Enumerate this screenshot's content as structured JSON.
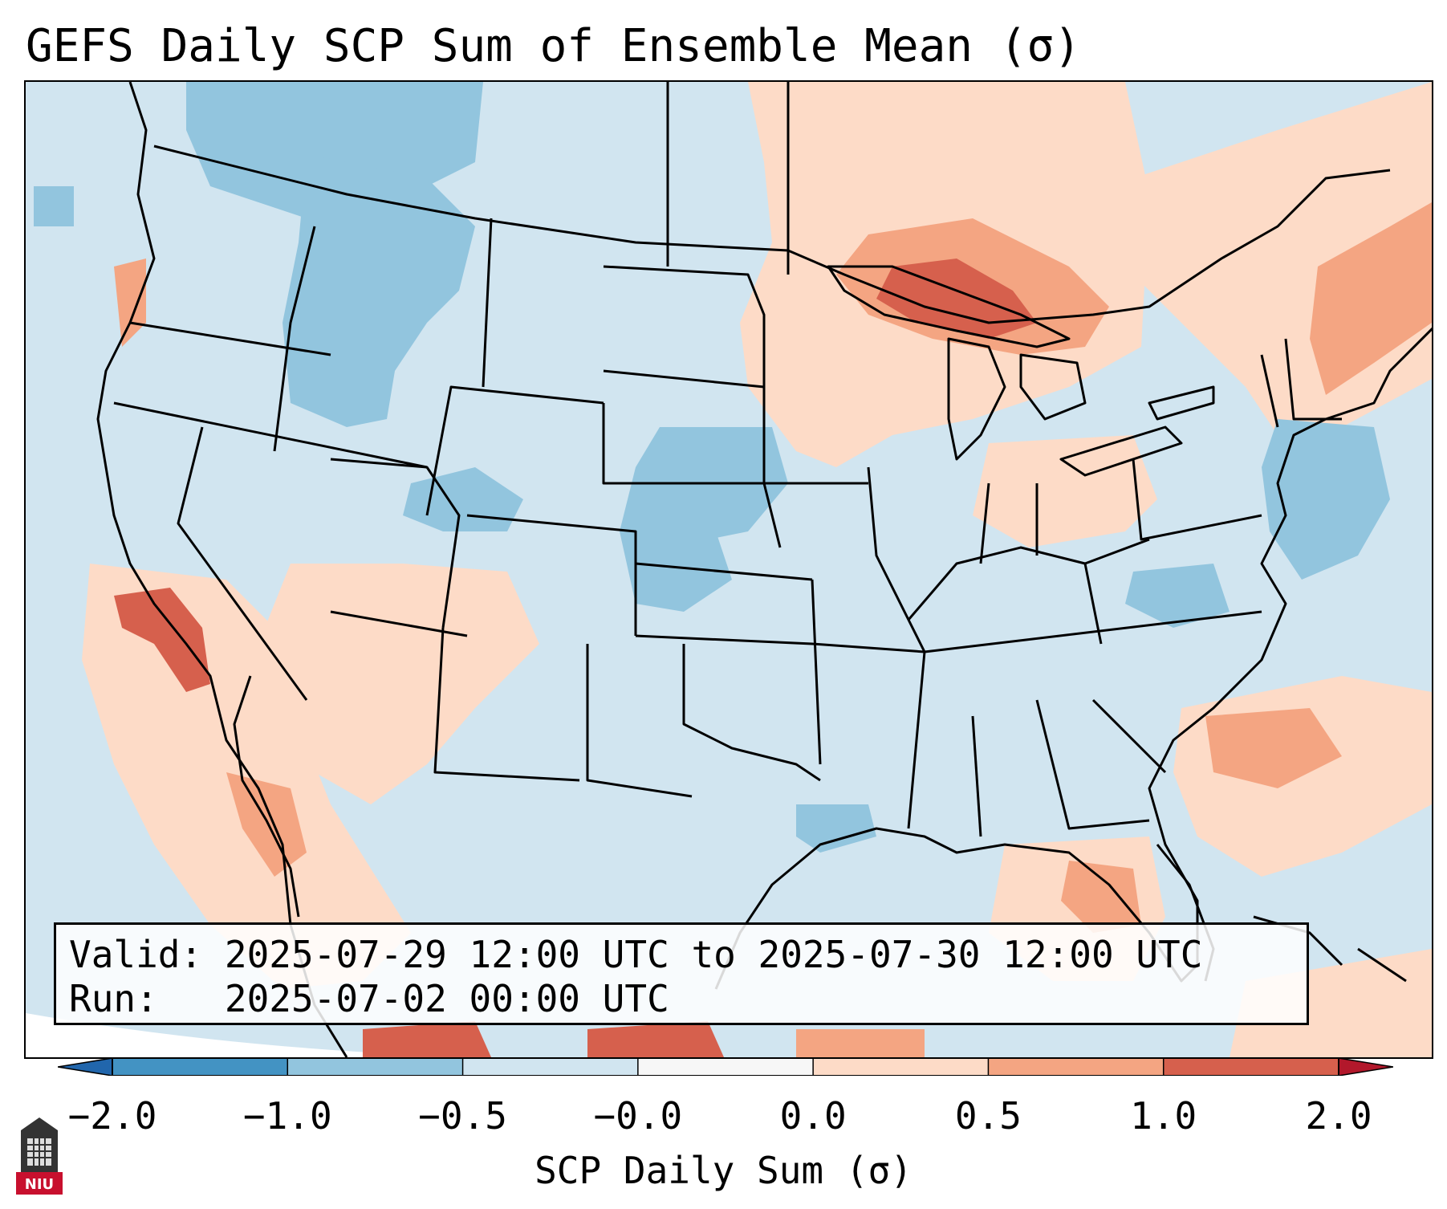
{
  "title": "GEFS Daily SCP Sum of Ensemble Mean (σ)",
  "info": {
    "valid_label": "Valid:",
    "valid_value": "2025-07-29 12:00 UTC to 2025-07-30 12:00 UTC",
    "run_label": "Run:",
    "run_value": "2025-07-02 00:00 UTC"
  },
  "colorbar": {
    "label": "SCP Daily Sum (σ)",
    "ticks": [
      "−2.0",
      "−1.0",
      "−0.5",
      "−0.0",
      "0.0",
      "0.5",
      "1.0",
      "2.0"
    ],
    "bins": [
      {
        "range": "< -2.0",
        "color": "#2166ac"
      },
      {
        "range": "-2.0 to -1.0",
        "color": "#4393c3"
      },
      {
        "range": "-1.0 to -0.5",
        "color": "#92c5de"
      },
      {
        "range": "-0.5 to -0.0",
        "color": "#d1e5f0"
      },
      {
        "range": "-0.0 to 0.0",
        "color": "#f7f7f7"
      },
      {
        "range": "0.0 to 0.5",
        "color": "#fddbc7"
      },
      {
        "range": "0.5 to 1.0",
        "color": "#f4a582"
      },
      {
        "range": "1.0 to 2.0",
        "color": "#d6604d"
      },
      {
        "range": "> 2.0",
        "color": "#b2182b"
      }
    ]
  },
  "logo": {
    "text": "NIU",
    "color": "#c8102e"
  }
}
